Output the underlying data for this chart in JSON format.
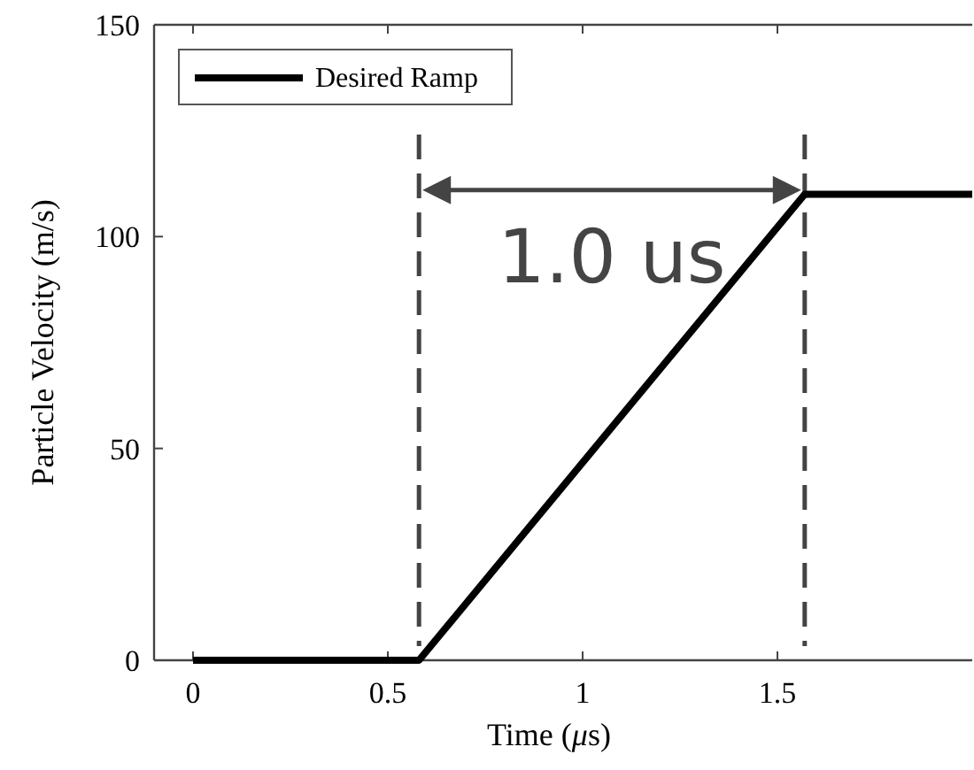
{
  "chart_data": {
    "type": "line",
    "xlabel": "Time (μs)",
    "ylabel": "Particle Velocity (m/s)",
    "xlim": [
      -0.1,
      2
    ],
    "ylim": [
      0,
      150
    ],
    "xticks": [
      0,
      0.5,
      1,
      1.5
    ],
    "yticks": [
      0,
      50,
      100,
      150
    ],
    "grid": false,
    "legend": "top left",
    "marker": "none",
    "line_style": "solid",
    "series": [
      {
        "name": "Desired Ramp",
        "color": "#000000",
        "x": [
          0,
          0.58,
          1.57,
          2
        ],
        "values": [
          0,
          0,
          110,
          110
        ]
      }
    ],
    "ref_lines": [
      {
        "axis": "x",
        "value": 0.58,
        "color": "#444444",
        "line_style": "dashed"
      },
      {
        "axis": "x",
        "value": 1.57,
        "color": "#444444",
        "line_style": "dashed"
      }
    ],
    "annotations": [
      "1.0 us"
    ]
  }
}
